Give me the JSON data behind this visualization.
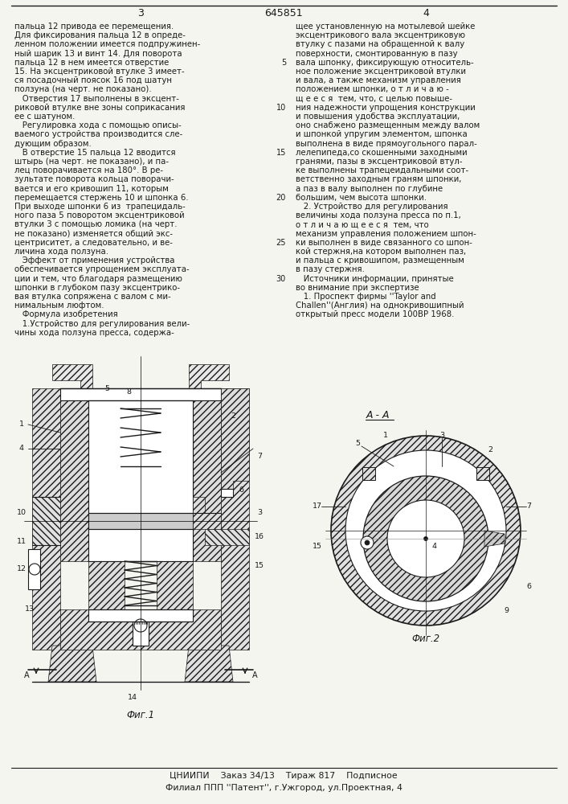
{
  "page_number_left": "3",
  "patent_number": "645851",
  "page_number_right": "4",
  "background_color": "#f5f5f0",
  "text_color": "#1a1a1a",
  "left_column_text": [
    "пальца 12 привода ее перемещения.",
    "Для фиксирования пальца 12 в опреде-",
    "ленном положении имеется подпружинен-",
    "ный шарик 13 и винт 14. Для поворота",
    "пальца 12 в нем имеется отверстие",
    "15. На эксцентриковой втулке 3 имеет-",
    "ся посадочный поясок 16 под шатун",
    "ползуна (на черт. не показано).",
    "   Отверстия 17 выполнены в эксцент-",
    "риковой втулке вне зоны соприкасания",
    "ее с шатуном.",
    "   Регулировка хода с помощью описы-",
    "ваемого устройства производится сле-",
    "дующим образом.",
    "   В отверстие 15 пальца 12 вводится",
    "штырь (на черт. не показано), и па-",
    "лец поворачивается на 180°. В ре-",
    "зультате поворота кольца поворачи-",
    "вается и его кривошип 11, которым",
    "перемещается стержень 10 и шпонка 6.",
    "При выходе шпонки 6 из  трапецидаль-",
    "ного паза 5 поворотом эксцентриковой",
    "втулки 3 с помощью ломика (на черт.",
    "не показано) изменяется общий экс-",
    "центриситет, а следовательно, и ве-",
    "личина хода ползуна.",
    "   Эффект от применения устройства",
    "обеспечивается упрощением эксплуата-",
    "ции и тем, что благодаря размещению",
    "шпонки в глубоком пазу эксцентрико-",
    "вая втулка сопряжена с валом с ми-",
    "нимальным люфтом.",
    "   Формула изобретения",
    "   1.Устройство для регулирования вели-",
    "чины хода ползуна пресса, содержа-"
  ],
  "right_column_text": [
    "щее установленную на мотылевой шейке",
    "эксцентрикового вала эксцентриковую",
    "втулку с пазами на обращенной к валу",
    "поверхности, смонтированную в пазу",
    "вала шпонку, фиксирующую относитель-",
    "ное положение эксцентриковой втулки",
    "и вала, а также механизм управления",
    "положением шпонки, о т л и ч а ю -",
    "щ е е с я  тем, что, с целью повыше-",
    "ния надежности упрощения конструкции",
    "и повышения удобства эксплуатации,",
    "оно снабжено размещенным между валом",
    "и шпонкой упругим элементом, шпонка",
    "выполнена в виде прямоугольного парал-",
    "лелепипеда,со скошенными заходными",
    "гранями, пазы в эксцентриковой втул-",
    "ке выполнены трапецеидальными соот-",
    "ветственно заходным граням шпонки,",
    "а паз в валу выполнен по глубине",
    "большим, чем высота шпонки.",
    "   2. Устройство для регулирования",
    "величины хода ползуна пресса по п.1,",
    "о т л и ч а ю щ е е с я  тем, что",
    "механизм управления положением шпон-",
    "ки выполнен в виде связанного со шпон-",
    "кой стержня,на котором выполнен паз,",
    "и пальца с кривошипом, размещенным",
    "в пазу стержня.",
    "   Источники информации, принятые",
    "во внимание при экспертизе",
    "   1. Проспект фирмы ''Taylor and",
    "Challen''(Англия) на однокривошипный",
    "открытый пресс модели 100ВР 1968."
  ],
  "line_numbers": [
    [
      5,
      4
    ],
    [
      10,
      9
    ],
    [
      15,
      14
    ],
    [
      20,
      19
    ],
    [
      25,
      24
    ],
    [
      30,
      28
    ]
  ],
  "fig1_label": "Фиг.1",
  "fig2_label": "Фиг.2",
  "section_label": "А - А",
  "footer_line1": "ЦНИИПИ    Заказ 34/13    Тираж 817    Подписное",
  "footer_line2": "Филиал ППП ''Патент'', г.Ужгород, ул.Проектная, 4",
  "hatch_color": "#555555",
  "line_color": "#1a1a1a"
}
